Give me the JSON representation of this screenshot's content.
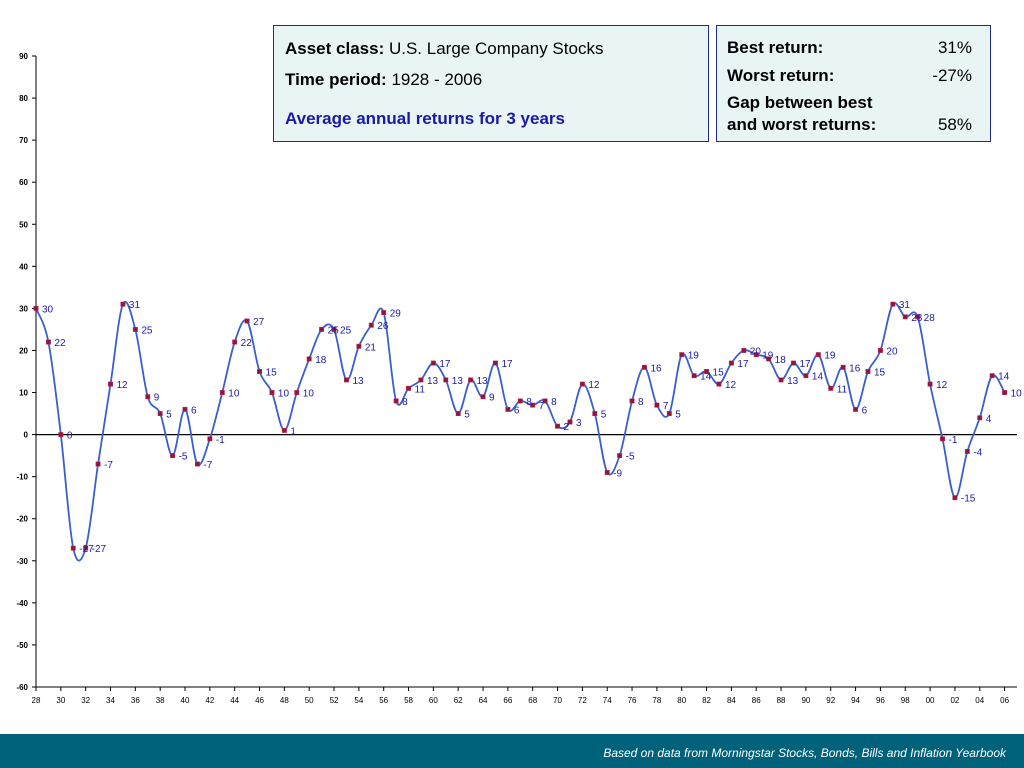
{
  "asset_box": {
    "asset_label": "Asset class:",
    "asset_value": "U.S. Large Company Stocks",
    "period_label": "Time period:",
    "period_value": "1928 - 2006",
    "subtitle": "Average annual returns for 3 years"
  },
  "stats_box": {
    "best_label": "Best return:",
    "best_value": "31%",
    "worst_label": "Worst return:",
    "worst_value": "-27%",
    "gap_label_line1": "Gap between best",
    "gap_label_line2": "and worst returns:",
    "gap_value": "58%"
  },
  "footer": {
    "source": "Based on data from Morningstar Stocks, Bonds, Bills and Inflation Yearbook"
  },
  "colors": {
    "line": "#3a5fcd",
    "marker": "#8b1a3a",
    "label": "#1a1aa6",
    "footer_bg": "#00617a",
    "box_bg": "#e9f4f4",
    "box_border": "#1f2d8a"
  },
  "chart_data": {
    "type": "line",
    "ylim": [
      -60,
      90
    ],
    "yticks": [
      90,
      80,
      70,
      60,
      50,
      40,
      30,
      20,
      10,
      0,
      -10,
      -20,
      -30,
      -40,
      -50,
      -60
    ],
    "xtick_labels": [
      "28",
      "30",
      "32",
      "34",
      "36",
      "38",
      "40",
      "42",
      "44",
      "46",
      "48",
      "50",
      "52",
      "54",
      "56",
      "58",
      "60",
      "62",
      "64",
      "66",
      "68",
      "70",
      "72",
      "74",
      "76",
      "78",
      "80",
      "82",
      "84",
      "86",
      "88",
      "90",
      "92",
      "94",
      "96",
      "98",
      "00",
      "02",
      "04",
      "06"
    ],
    "x": [
      1928,
      1929,
      1930,
      1931,
      1932,
      1933,
      1934,
      1935,
      1936,
      1937,
      1938,
      1939,
      1940,
      1941,
      1942,
      1943,
      1944,
      1945,
      1946,
      1947,
      1948,
      1949,
      1950,
      1951,
      1952,
      1953,
      1954,
      1955,
      1956,
      1957,
      1958,
      1959,
      1960,
      1961,
      1962,
      1963,
      1964,
      1965,
      1966,
      1967,
      1968,
      1969,
      1970,
      1971,
      1972,
      1973,
      1974,
      1975,
      1976,
      1977,
      1978,
      1979,
      1980,
      1981,
      1982,
      1983,
      1984,
      1985,
      1986,
      1987,
      1988,
      1989,
      1990,
      1991,
      1992,
      1993,
      1994,
      1995,
      1996,
      1997,
      1998,
      1999,
      2000,
      2001,
      2002,
      2003,
      2004,
      2005,
      2006
    ],
    "values": [
      30,
      22,
      0,
      -27,
      -27,
      -7,
      12,
      31,
      25,
      9,
      5,
      -5,
      6,
      -7,
      -1,
      10,
      22,
      27,
      15,
      10,
      1,
      10,
      18,
      25,
      25,
      13,
      21,
      26,
      29,
      8,
      11,
      13,
      17,
      13,
      5,
      13,
      9,
      17,
      6,
      8,
      7,
      8,
      2,
      3,
      12,
      5,
      -9,
      -5,
      8,
      16,
      7,
      5,
      19,
      14,
      15,
      12,
      17,
      20,
      19,
      18,
      13,
      17,
      14,
      19,
      11,
      16,
      6,
      15,
      20,
      31,
      28,
      28,
      12,
      -1,
      -15,
      -4,
      4,
      14,
      10
    ],
    "point_labels": [
      "30",
      "22",
      "0",
      "-27",
      "-27",
      "-7",
      "12",
      "31",
      "25",
      "9",
      "5",
      "-5",
      "6",
      "-7",
      "-1",
      "10",
      "22",
      "27",
      "15",
      "10",
      "1",
      "10",
      "18",
      "25",
      "25",
      "13",
      "21",
      "26",
      "29",
      "8",
      "11",
      "13",
      "17",
      "13",
      "5",
      "13",
      "9",
      "17",
      "6",
      "8",
      "7",
      "8",
      "2",
      "3",
      "12",
      "5",
      "-9",
      "-5",
      "8",
      "16",
      "7",
      "5",
      "19",
      "14",
      "15",
      "12",
      "17",
      "20",
      "19",
      "18",
      "13",
      "17",
      "14",
      "19",
      "11",
      "16",
      "6",
      "15",
      "20",
      "31",
      "28",
      "28",
      "12",
      "-1",
      "-15",
      "-4",
      "4",
      "14",
      "10"
    ]
  }
}
